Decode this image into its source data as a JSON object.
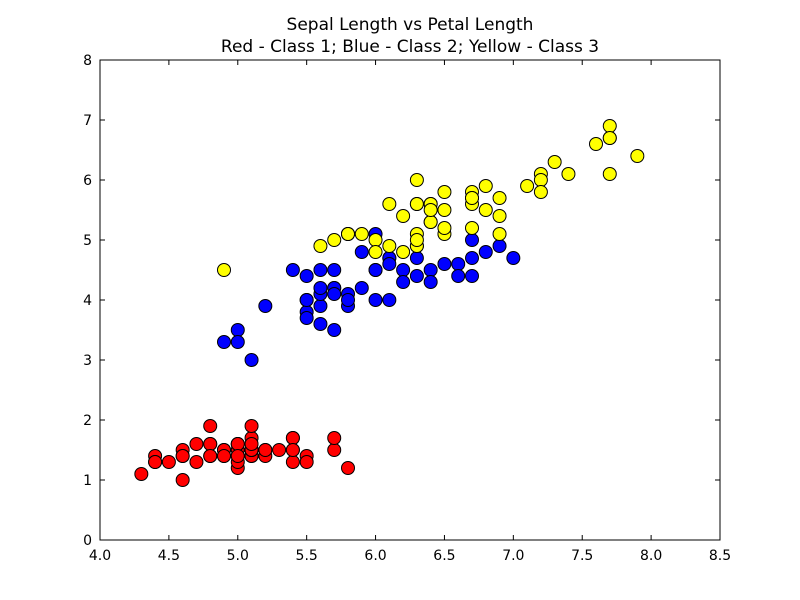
{
  "chart_data": {
    "type": "scatter",
    "title": "Sepal Length vs Petal Length",
    "subtitle": "Red - Class 1; Blue - Class 2; Yellow - Class 3",
    "xlabel": "",
    "ylabel": "",
    "xlim": [
      4.0,
      8.5
    ],
    "ylim": [
      0,
      8
    ],
    "xticks": [
      "4.0",
      "4.5",
      "5.0",
      "5.5",
      "6.0",
      "6.5",
      "7.0",
      "7.5",
      "8.0",
      "8.5"
    ],
    "yticks": [
      "0",
      "1",
      "2",
      "3",
      "4",
      "5",
      "6",
      "7",
      "8"
    ],
    "grid": false,
    "series": [
      {
        "color": "#ff0000",
        "points": [
          [
            5.1,
            1.4
          ],
          [
            4.9,
            1.4
          ],
          [
            4.7,
            1.3
          ],
          [
            4.6,
            1.5
          ],
          [
            5.0,
            1.4
          ],
          [
            5.4,
            1.7
          ],
          [
            4.6,
            1.4
          ],
          [
            5.0,
            1.5
          ],
          [
            4.4,
            1.4
          ],
          [
            4.9,
            1.5
          ],
          [
            5.4,
            1.5
          ],
          [
            4.8,
            1.6
          ],
          [
            4.8,
            1.4
          ],
          [
            4.3,
            1.1
          ],
          [
            5.8,
            1.2
          ],
          [
            5.7,
            1.5
          ],
          [
            5.4,
            1.3
          ],
          [
            5.1,
            1.4
          ],
          [
            5.7,
            1.7
          ],
          [
            5.1,
            1.5
          ],
          [
            5.4,
            1.7
          ],
          [
            5.1,
            1.5
          ],
          [
            4.6,
            1.0
          ],
          [
            5.1,
            1.7
          ],
          [
            4.8,
            1.9
          ],
          [
            5.0,
            1.6
          ],
          [
            5.0,
            1.6
          ],
          [
            5.2,
            1.5
          ],
          [
            5.2,
            1.4
          ],
          [
            4.7,
            1.6
          ],
          [
            4.8,
            1.6
          ],
          [
            5.4,
            1.5
          ],
          [
            5.2,
            1.5
          ],
          [
            5.5,
            1.4
          ],
          [
            4.9,
            1.5
          ],
          [
            5.0,
            1.2
          ],
          [
            5.5,
            1.3
          ],
          [
            4.9,
            1.4
          ],
          [
            4.4,
            1.3
          ],
          [
            5.1,
            1.5
          ],
          [
            5.0,
            1.3
          ],
          [
            4.5,
            1.3
          ],
          [
            4.4,
            1.3
          ],
          [
            5.0,
            1.6
          ],
          [
            5.1,
            1.9
          ],
          [
            4.8,
            1.4
          ],
          [
            5.1,
            1.6
          ],
          [
            4.6,
            1.4
          ],
          [
            5.3,
            1.5
          ],
          [
            5.0,
            1.4
          ]
        ]
      },
      {
        "color": "#0000ff",
        "points": [
          [
            7.0,
            4.7
          ],
          [
            6.4,
            4.5
          ],
          [
            6.9,
            4.9
          ],
          [
            5.5,
            4.0
          ],
          [
            6.5,
            4.6
          ],
          [
            5.7,
            4.5
          ],
          [
            6.3,
            4.7
          ],
          [
            4.9,
            3.3
          ],
          [
            6.6,
            4.6
          ],
          [
            5.2,
            3.9
          ],
          [
            5.0,
            3.5
          ],
          [
            5.9,
            4.2
          ],
          [
            6.0,
            4.0
          ],
          [
            6.1,
            4.7
          ],
          [
            5.6,
            3.6
          ],
          [
            6.7,
            4.4
          ],
          [
            5.6,
            4.5
          ],
          [
            5.8,
            4.1
          ],
          [
            6.2,
            4.5
          ],
          [
            5.6,
            3.9
          ],
          [
            5.9,
            4.8
          ],
          [
            6.1,
            4.0
          ],
          [
            6.3,
            4.9
          ],
          [
            6.1,
            4.7
          ],
          [
            6.4,
            4.3
          ],
          [
            6.6,
            4.4
          ],
          [
            6.8,
            4.8
          ],
          [
            6.7,
            5.0
          ],
          [
            6.0,
            4.5
          ],
          [
            5.7,
            3.5
          ],
          [
            5.5,
            3.8
          ],
          [
            5.5,
            3.7
          ],
          [
            5.8,
            3.9
          ],
          [
            6.0,
            5.1
          ],
          [
            5.4,
            4.5
          ],
          [
            6.0,
            4.5
          ],
          [
            6.7,
            4.7
          ],
          [
            6.3,
            4.4
          ],
          [
            5.6,
            4.1
          ],
          [
            5.5,
            4.0
          ],
          [
            5.5,
            4.4
          ],
          [
            6.1,
            4.6
          ],
          [
            5.8,
            4.0
          ],
          [
            5.0,
            3.3
          ],
          [
            5.6,
            4.2
          ],
          [
            5.7,
            4.2
          ],
          [
            5.7,
            4.2
          ],
          [
            6.2,
            4.3
          ],
          [
            5.1,
            3.0
          ],
          [
            5.7,
            4.1
          ]
        ]
      },
      {
        "color": "#ffff00",
        "points": [
          [
            6.3,
            6.0
          ],
          [
            5.8,
            5.1
          ],
          [
            7.1,
            5.9
          ],
          [
            6.3,
            5.6
          ],
          [
            6.5,
            5.8
          ],
          [
            7.6,
            6.6
          ],
          [
            4.9,
            4.5
          ],
          [
            7.3,
            6.3
          ],
          [
            6.7,
            5.8
          ],
          [
            7.2,
            6.1
          ],
          [
            6.5,
            5.1
          ],
          [
            6.4,
            5.3
          ],
          [
            6.8,
            5.5
          ],
          [
            5.7,
            5.0
          ],
          [
            5.8,
            5.1
          ],
          [
            6.4,
            5.3
          ],
          [
            6.5,
            5.5
          ],
          [
            7.7,
            6.7
          ],
          [
            7.7,
            6.9
          ],
          [
            6.0,
            5.0
          ],
          [
            6.9,
            5.7
          ],
          [
            5.6,
            4.9
          ],
          [
            7.7,
            6.7
          ],
          [
            6.3,
            4.9
          ],
          [
            6.7,
            5.7
          ],
          [
            7.2,
            6.0
          ],
          [
            6.2,
            4.8
          ],
          [
            6.1,
            4.9
          ],
          [
            6.4,
            5.6
          ],
          [
            7.2,
            5.8
          ],
          [
            7.4,
            6.1
          ],
          [
            7.9,
            6.4
          ],
          [
            6.4,
            5.6
          ],
          [
            6.3,
            5.1
          ],
          [
            6.1,
            5.6
          ],
          [
            7.7,
            6.1
          ],
          [
            6.3,
            5.6
          ],
          [
            6.4,
            5.5
          ],
          [
            6.0,
            4.8
          ],
          [
            6.9,
            5.4
          ],
          [
            6.7,
            5.6
          ],
          [
            6.9,
            5.1
          ],
          [
            5.8,
            5.1
          ],
          [
            6.8,
            5.9
          ],
          [
            6.7,
            5.7
          ],
          [
            6.7,
            5.2
          ],
          [
            6.3,
            5.0
          ],
          [
            6.5,
            5.2
          ],
          [
            6.2,
            5.4
          ],
          [
            5.9,
            5.1
          ]
        ]
      }
    ]
  }
}
